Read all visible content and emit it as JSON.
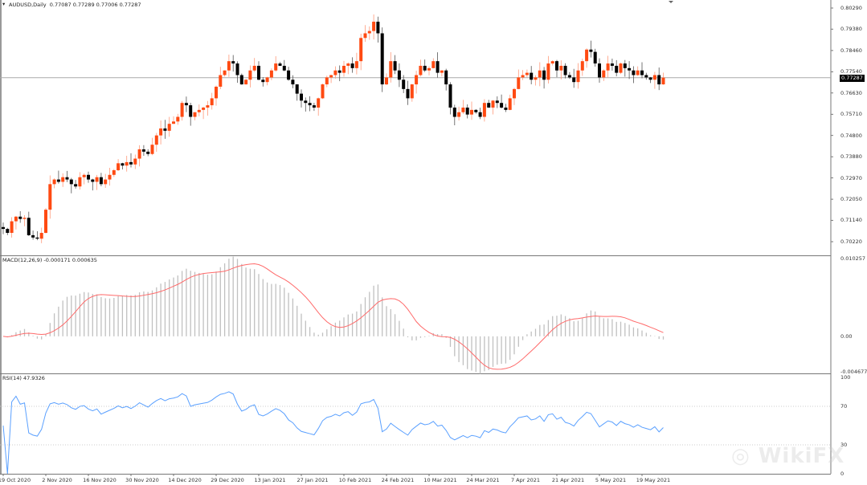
{
  "chart_data": {
    "type": "candlestick",
    "title": "AUDUSD,Daily",
    "ohlc_readout": "0.77087 0.77289 0.77006 0.77287",
    "current_price": 0.77287,
    "current_price_label": "0.77287",
    "price_ylim": [
      0.7022,
      0.8029
    ],
    "price_ticks": [
      "0.80290",
      "0.79380",
      "0.78460",
      "0.77540",
      "0.76630",
      "0.75710",
      "0.74800",
      "0.73880",
      "0.72970",
      "0.72050",
      "0.71140",
      "0.70220"
    ],
    "closes": [
      0.7077,
      0.706,
      0.711,
      0.713,
      0.712,
      0.7125,
      0.705,
      0.704,
      0.7035,
      0.706,
      0.716,
      0.727,
      0.729,
      0.728,
      0.73,
      0.729,
      0.727,
      0.726,
      0.73,
      0.731,
      0.729,
      0.728,
      0.73,
      0.727,
      0.729,
      0.731,
      0.733,
      0.736,
      0.735,
      0.7365,
      0.7355,
      0.738,
      0.742,
      0.741,
      0.74,
      0.744,
      0.748,
      0.751,
      0.75,
      0.753,
      0.754,
      0.756,
      0.762,
      0.761,
      0.756,
      0.758,
      0.759,
      0.76,
      0.761,
      0.764,
      0.769,
      0.774,
      0.776,
      0.78,
      0.779,
      0.774,
      0.77,
      0.772,
      0.776,
      0.778,
      0.772,
      0.771,
      0.773,
      0.776,
      0.779,
      0.778,
      0.776,
      0.772,
      0.77,
      0.766,
      0.763,
      0.762,
      0.761,
      0.76,
      0.764,
      0.77,
      0.773,
      0.774,
      0.776,
      0.775,
      0.778,
      0.779,
      0.777,
      0.78,
      0.79,
      0.792,
      0.793,
      0.797,
      0.792,
      0.77,
      0.773,
      0.78,
      0.776,
      0.772,
      0.768,
      0.764,
      0.77,
      0.774,
      0.778,
      0.776,
      0.777,
      0.78,
      0.775,
      0.776,
      0.77,
      0.76,
      0.756,
      0.758,
      0.76,
      0.757,
      0.759,
      0.758,
      0.756,
      0.762,
      0.76,
      0.763,
      0.762,
      0.76,
      0.759,
      0.764,
      0.768,
      0.773,
      0.774,
      0.775,
      0.772,
      0.773,
      0.776,
      0.772,
      0.779,
      0.78,
      0.776,
      0.778,
      0.774,
      0.773,
      0.771,
      0.776,
      0.78,
      0.785,
      0.784,
      0.779,
      0.773,
      0.776,
      0.779,
      0.778,
      0.775,
      0.779,
      0.777,
      0.776,
      0.774,
      0.776,
      0.774,
      0.773,
      0.772,
      0.774,
      0.77,
      0.7729
    ],
    "first_open": 0.7085,
    "date_labels": [
      "19 Oct 2020",
      "2 Nov 2020",
      "16 Nov 2020",
      "30 Nov 2020",
      "14 Dec 2020",
      "29 Dec 2020",
      "13 Jan 2021",
      "27 Jan 2021",
      "10 Feb 2021",
      "24 Feb 2021",
      "10 Mar 2021",
      "24 Mar 2021",
      "7 Apr 2021",
      "21 Apr 2021",
      "5 May 2021",
      "19 May 2021"
    ],
    "macd": {
      "label": "MACD(12,26,9) -0.000171 0.000635",
      "ylim": [
        -0.004677,
        0.010257
      ],
      "ticks": [
        "0.010257",
        "0.00",
        "-0.004677"
      ]
    },
    "rsi": {
      "label": "RSI(14) 47.9326",
      "ylim": [
        0,
        100
      ],
      "ticks": [
        "100",
        "70",
        "30",
        "0"
      ],
      "levels": [
        70,
        30
      ]
    },
    "colors": {
      "bull": "#ff4a12",
      "bear": "#000000",
      "macd_hist": "#c0c0c0",
      "signal": "#ff6a6a",
      "rsi": "#5aa0ff"
    }
  },
  "watermark": "WikiFX"
}
